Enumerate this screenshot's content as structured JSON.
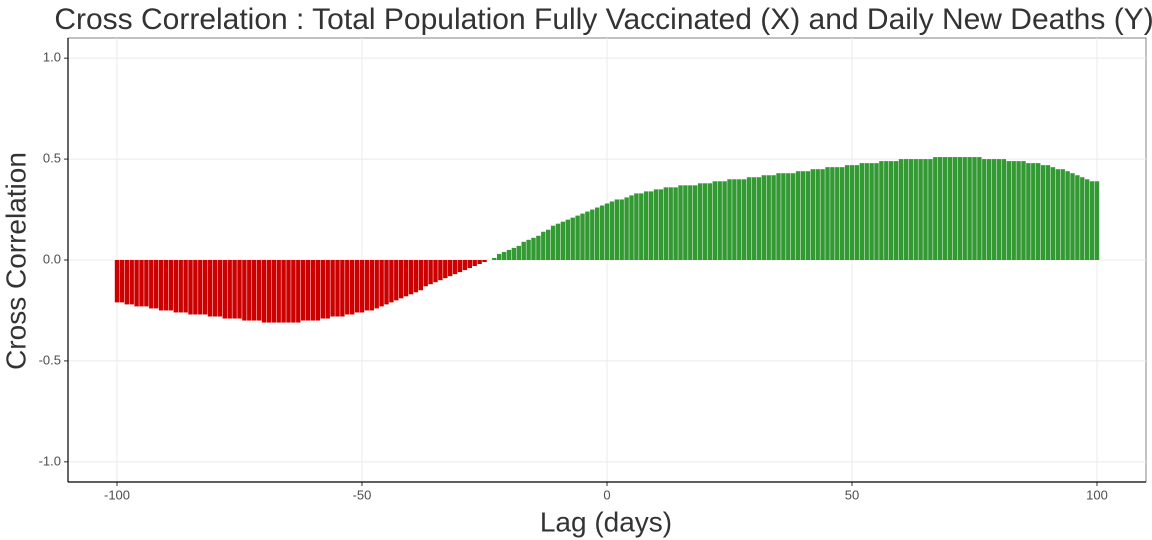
{
  "chart_data": {
    "type": "bar",
    "title": "Cross Correlation : Total Population Fully Vaccinated (X) and Daily New Deaths (Y)",
    "x_label": "Lag (days)",
    "y_label": "Cross Correlation",
    "x": [
      -100,
      -99,
      -98,
      -97,
      -96,
      -95,
      -94,
      -93,
      -92,
      -91,
      -90,
      -89,
      -88,
      -87,
      -86,
      -85,
      -84,
      -83,
      -82,
      -81,
      -80,
      -79,
      -78,
      -77,
      -76,
      -75,
      -74,
      -73,
      -72,
      -71,
      -70,
      -69,
      -68,
      -67,
      -66,
      -65,
      -64,
      -63,
      -62,
      -61,
      -60,
      -59,
      -58,
      -57,
      -56,
      -55,
      -54,
      -53,
      -52,
      -51,
      -50,
      -49,
      -48,
      -47,
      -46,
      -45,
      -44,
      -43,
      -42,
      -41,
      -40,
      -39,
      -38,
      -37,
      -36,
      -35,
      -34,
      -33,
      -32,
      -31,
      -30,
      -29,
      -28,
      -27,
      -26,
      -25,
      -24,
      -23,
      -22,
      -21,
      -20,
      -19,
      -18,
      -17,
      -16,
      -15,
      -14,
      -13,
      -12,
      -11,
      -10,
      -9,
      -8,
      -7,
      -6,
      -5,
      -4,
      -3,
      -2,
      -1,
      0,
      1,
      2,
      3,
      4,
      5,
      6,
      7,
      8,
      9,
      10,
      11,
      12,
      13,
      14,
      15,
      16,
      17,
      18,
      19,
      20,
      21,
      22,
      23,
      24,
      25,
      26,
      27,
      28,
      29,
      30,
      31,
      32,
      33,
      34,
      35,
      36,
      37,
      38,
      39,
      40,
      41,
      42,
      43,
      44,
      45,
      46,
      47,
      48,
      49,
      50,
      51,
      52,
      53,
      54,
      55,
      56,
      57,
      58,
      59,
      60,
      61,
      62,
      63,
      64,
      65,
      66,
      67,
      68,
      69,
      70,
      71,
      72,
      73,
      74,
      75,
      76,
      77,
      78,
      79,
      80,
      81,
      82,
      83,
      84,
      85,
      86,
      87,
      88,
      89,
      90,
      91,
      92,
      93,
      94,
      95,
      96,
      97,
      98,
      99,
      100
    ],
    "values": [
      -0.21,
      -0.21,
      -0.22,
      -0.22,
      -0.23,
      -0.23,
      -0.23,
      -0.24,
      -0.24,
      -0.25,
      -0.25,
      -0.25,
      -0.26,
      -0.26,
      -0.26,
      -0.27,
      -0.27,
      -0.27,
      -0.27,
      -0.28,
      -0.28,
      -0.28,
      -0.29,
      -0.29,
      -0.29,
      -0.29,
      -0.3,
      -0.3,
      -0.3,
      -0.3,
      -0.31,
      -0.31,
      -0.31,
      -0.31,
      -0.31,
      -0.31,
      -0.31,
      -0.31,
      -0.3,
      -0.3,
      -0.3,
      -0.3,
      -0.29,
      -0.29,
      -0.28,
      -0.28,
      -0.28,
      -0.27,
      -0.27,
      -0.26,
      -0.26,
      -0.25,
      -0.25,
      -0.24,
      -0.23,
      -0.22,
      -0.21,
      -0.2,
      -0.19,
      -0.18,
      -0.17,
      -0.16,
      -0.15,
      -0.13,
      -0.12,
      -0.11,
      -0.1,
      -0.09,
      -0.08,
      -0.07,
      -0.06,
      -0.05,
      -0.04,
      -0.03,
      -0.02,
      -0.01,
      0.0,
      0.01,
      0.03,
      0.04,
      0.05,
      0.06,
      0.07,
      0.09,
      0.1,
      0.11,
      0.12,
      0.14,
      0.15,
      0.17,
      0.18,
      0.19,
      0.2,
      0.21,
      0.22,
      0.23,
      0.24,
      0.25,
      0.26,
      0.27,
      0.28,
      0.29,
      0.3,
      0.3,
      0.31,
      0.32,
      0.33,
      0.33,
      0.34,
      0.34,
      0.35,
      0.35,
      0.36,
      0.36,
      0.36,
      0.37,
      0.37,
      0.37,
      0.37,
      0.38,
      0.38,
      0.38,
      0.39,
      0.39,
      0.39,
      0.4,
      0.4,
      0.4,
      0.4,
      0.41,
      0.41,
      0.41,
      0.42,
      0.42,
      0.42,
      0.43,
      0.43,
      0.43,
      0.43,
      0.44,
      0.44,
      0.44,
      0.45,
      0.45,
      0.45,
      0.46,
      0.46,
      0.46,
      0.46,
      0.47,
      0.47,
      0.47,
      0.48,
      0.48,
      0.48,
      0.48,
      0.49,
      0.49,
      0.49,
      0.49,
      0.5,
      0.5,
      0.5,
      0.5,
      0.5,
      0.5,
      0.5,
      0.51,
      0.51,
      0.51,
      0.51,
      0.51,
      0.51,
      0.51,
      0.51,
      0.51,
      0.51,
      0.5,
      0.5,
      0.5,
      0.5,
      0.5,
      0.49,
      0.49,
      0.49,
      0.49,
      0.48,
      0.48,
      0.48,
      0.47,
      0.47,
      0.46,
      0.45,
      0.45,
      0.44,
      0.43,
      0.42,
      0.41,
      0.4,
      0.39,
      0.39
    ],
    "positive_color": "#339933",
    "negative_color": "#cc0000",
    "xlim": [
      -110,
      110
    ],
    "xticks": [
      -100,
      -50,
      0,
      50,
      100
    ],
    "ylim": [
      -1.1,
      1.1
    ],
    "yticks": [
      {
        "value": -1.0,
        "label": "-1.0"
      },
      {
        "value": -0.5,
        "label": "-0.5"
      },
      {
        "value": 0.0,
        "label": "0.0"
      },
      {
        "value": 0.5,
        "label": "0.5"
      },
      {
        "value": 1.0,
        "label": "1.0"
      }
    ],
    "grid": true
  }
}
